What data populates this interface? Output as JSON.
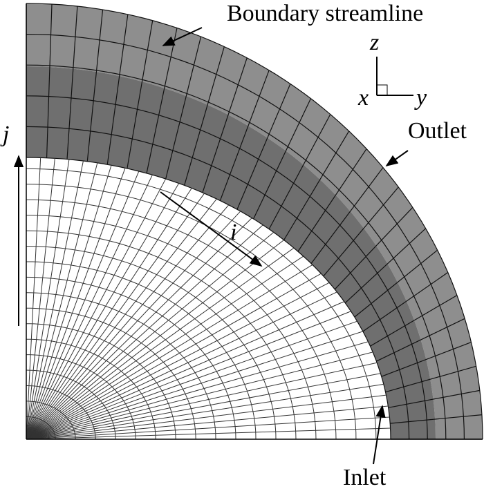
{
  "labels": {
    "boundary": "Boundary streamline",
    "outlet": "Outlet",
    "inlet": "Inlet",
    "i": "i",
    "j": "j",
    "z": "z",
    "x": "x",
    "y": "y"
  }
}
